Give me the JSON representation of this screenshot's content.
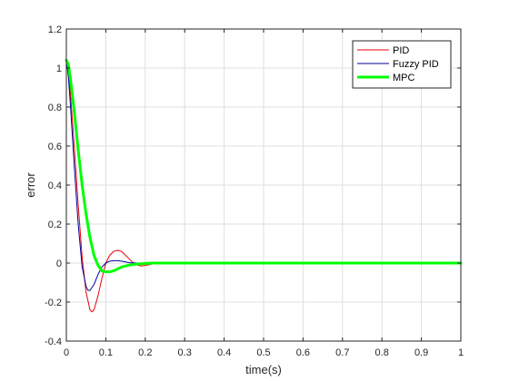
{
  "chart_data": {
    "type": "line",
    "xlabel": "time(s)",
    "ylabel": "error",
    "xlim": [
      0,
      1
    ],
    "ylim": [
      -0.4,
      1.2
    ],
    "xticks": [
      0,
      0.1,
      0.2,
      0.3,
      0.4,
      0.5,
      0.6,
      0.7,
      0.8,
      0.9,
      1
    ],
    "xtick_labels": [
      "0",
      "0.1",
      "0.2",
      "0.3",
      "0.4",
      "0.5",
      "0.6",
      "0.7",
      "0.8",
      "0.9",
      "1"
    ],
    "yticks": [
      -0.4,
      -0.2,
      0,
      0.2,
      0.4,
      0.6,
      0.8,
      1,
      1.2
    ],
    "ytick_labels": [
      "-0.4",
      "-0.2",
      "0",
      "0.2",
      "0.4",
      "0.6",
      "0.8",
      "1",
      "1.2"
    ],
    "grid": true,
    "legend_position": "top-right",
    "series": [
      {
        "name": "PID",
        "color": "#e8000b",
        "x": [
          0,
          0.005,
          0.01,
          0.02,
          0.03,
          0.04,
          0.05,
          0.06,
          0.065,
          0.07,
          0.08,
          0.09,
          0.1,
          0.11,
          0.12,
          0.13,
          0.14,
          0.15,
          0.16,
          0.17,
          0.18,
          0.19,
          0.2,
          0.21,
          0.22,
          0.23,
          0.25,
          0.3,
          1
        ],
        "y": [
          1.04,
          1.0,
          0.88,
          0.6,
          0.3,
          0.03,
          -0.15,
          -0.24,
          -0.25,
          -0.24,
          -0.17,
          -0.08,
          0.0,
          0.04,
          0.06,
          0.065,
          0.06,
          0.04,
          0.02,
          0.0,
          -0.01,
          -0.015,
          -0.012,
          -0.008,
          -0.003,
          0.0,
          0.0,
          0.0,
          0.0
        ]
      },
      {
        "name": "Fuzzy PID",
        "color": "#000099",
        "x": [
          0,
          0.005,
          0.01,
          0.02,
          0.03,
          0.04,
          0.05,
          0.055,
          0.06,
          0.07,
          0.08,
          0.09,
          0.1,
          0.11,
          0.12,
          0.13,
          0.14,
          0.15,
          0.16,
          0.18,
          0.2,
          0.25,
          1
        ],
        "y": [
          1.04,
          0.96,
          0.82,
          0.5,
          0.2,
          -0.02,
          -0.12,
          -0.14,
          -0.14,
          -0.11,
          -0.06,
          -0.02,
          0.0,
          0.01,
          0.012,
          0.012,
          0.01,
          0.006,
          0.002,
          0.0,
          0.0,
          0.0,
          0.0
        ]
      },
      {
        "name": "MPC",
        "color": "#00ff00",
        "x": [
          0,
          0.005,
          0.01,
          0.02,
          0.03,
          0.04,
          0.05,
          0.06,
          0.07,
          0.08,
          0.09,
          0.1,
          0.11,
          0.12,
          0.13,
          0.14,
          0.15,
          0.16,
          0.18,
          0.2,
          0.22,
          0.25,
          0.3,
          1
        ],
        "y": [
          1.04,
          1.02,
          0.95,
          0.78,
          0.58,
          0.4,
          0.25,
          0.13,
          0.04,
          -0.01,
          -0.04,
          -0.045,
          -0.045,
          -0.04,
          -0.03,
          -0.02,
          -0.015,
          -0.01,
          -0.005,
          -0.002,
          0.0,
          0.0,
          0.0,
          0.0
        ]
      }
    ]
  }
}
